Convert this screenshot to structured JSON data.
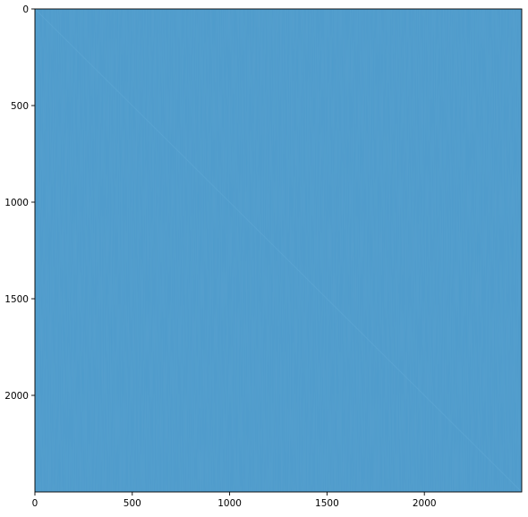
{
  "chart_data": {
    "type": "heatmap",
    "title": "",
    "xlabel": "",
    "ylabel": "",
    "xlim": [
      0,
      2500
    ],
    "ylim": [
      2500,
      0
    ],
    "x_ticks": [
      0,
      500,
      1000,
      1500,
      2000
    ],
    "y_ticks": [
      0,
      500,
      1000,
      1500,
      2000
    ],
    "x_tick_labels": [
      "0",
      "500",
      "1000",
      "1500",
      "2000"
    ],
    "y_tick_labels": [
      "0",
      "500",
      "1000",
      "1500",
      "2000"
    ],
    "grid": false,
    "legend": "none",
    "colorbar": false,
    "base_color": "#4c9acb",
    "diagonal_color": "#5ea6d4",
    "diagonal": [
      [
        0,
        0
      ],
      [
        2500,
        2500
      ]
    ]
  }
}
